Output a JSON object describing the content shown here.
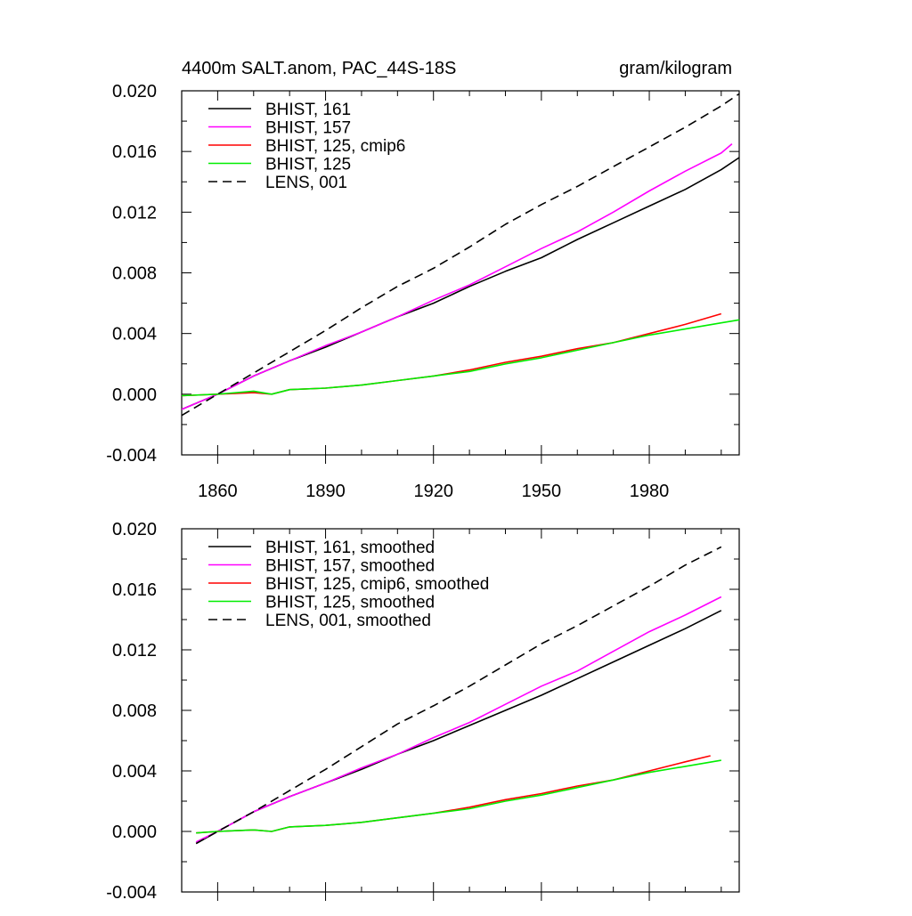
{
  "chart_data": [
    {
      "type": "line",
      "title_left": "4400m SALT.anom, PAC_44S-18S",
      "title_right": "gram/kilogram",
      "xlim": [
        1850,
        2005
      ],
      "ylim": [
        -0.004,
        0.02
      ],
      "x_ticks": [
        1860,
        1890,
        1920,
        1950,
        1980
      ],
      "x_tick_labels": [
        "1860",
        "1890",
        "1920",
        "1950",
        "1980"
      ],
      "y_ticks": [
        -0.004,
        0.0,
        0.004,
        0.008,
        0.012,
        0.016,
        0.02
      ],
      "y_tick_labels": [
        "-0.004",
        "0.000",
        "0.004",
        "0.008",
        "0.012",
        "0.016",
        "0.020"
      ],
      "legend_position": "top-left",
      "series": [
        {
          "name": "BHIST, 161",
          "color": "#000000",
          "dash": "solid",
          "x": [
            1850,
            1860,
            1870,
            1880,
            1890,
            1900,
            1910,
            1920,
            1930,
            1940,
            1950,
            1960,
            1970,
            1980,
            1990,
            2000,
            2005
          ],
          "y": [
            -0.001,
            0.0,
            0.0012,
            0.0022,
            0.0031,
            0.0041,
            0.0051,
            0.006,
            0.0071,
            0.0081,
            0.009,
            0.0102,
            0.0113,
            0.0124,
            0.0135,
            0.0148,
            0.0156
          ]
        },
        {
          "name": "BHIST, 157",
          "color": "#ff00ff",
          "dash": "solid",
          "x": [
            1850,
            1860,
            1870,
            1880,
            1890,
            1900,
            1910,
            1920,
            1930,
            1940,
            1950,
            1960,
            1970,
            1980,
            1990,
            2000,
            2003
          ],
          "y": [
            -0.001,
            0.0,
            0.0012,
            0.0022,
            0.0032,
            0.0041,
            0.0051,
            0.0062,
            0.0072,
            0.0084,
            0.0096,
            0.0107,
            0.012,
            0.0134,
            0.0147,
            0.0159,
            0.0165
          ]
        },
        {
          "name": "BHIST, 125, cmip6",
          "color": "#ff0000",
          "dash": "solid",
          "x": [
            1850,
            1860,
            1870,
            1875,
            1880,
            1890,
            1900,
            1910,
            1920,
            1930,
            1940,
            1950,
            1960,
            1970,
            1980,
            1990,
            2000
          ],
          "y": [
            -0.0001,
            0.0,
            0.0001,
            0.0,
            0.0003,
            0.0004,
            0.0006,
            0.0009,
            0.0012,
            0.0016,
            0.0021,
            0.0025,
            0.003,
            0.0034,
            0.004,
            0.0046,
            0.0053
          ]
        },
        {
          "name": "BHIST, 125",
          "color": "#00ee00",
          "dash": "solid",
          "x": [
            1850,
            1860,
            1870,
            1875,
            1880,
            1890,
            1900,
            1910,
            1920,
            1930,
            1940,
            1950,
            1960,
            1970,
            1980,
            1990,
            2000,
            2005
          ],
          "y": [
            -0.0001,
            0.0,
            0.0002,
            0.0,
            0.0003,
            0.0004,
            0.0006,
            0.0009,
            0.0012,
            0.0015,
            0.002,
            0.0024,
            0.0029,
            0.0034,
            0.0039,
            0.0043,
            0.0047,
            0.0049
          ]
        },
        {
          "name": "LENS, 001",
          "color": "#000000",
          "dash": "dashed",
          "x": [
            1850,
            1860,
            1870,
            1880,
            1890,
            1900,
            1910,
            1920,
            1930,
            1940,
            1950,
            1960,
            1970,
            1980,
            1990,
            2000,
            2005
          ],
          "y": [
            -0.0014,
            0.0,
            0.0014,
            0.0028,
            0.0042,
            0.0057,
            0.0071,
            0.0083,
            0.0097,
            0.0112,
            0.0125,
            0.0137,
            0.015,
            0.0163,
            0.0176,
            0.019,
            0.0198
          ]
        }
      ]
    },
    {
      "type": "line",
      "xlim": [
        1850,
        2005
      ],
      "ylim": [
        -0.004,
        0.02
      ],
      "x_ticks": [
        1860,
        1890,
        1920,
        1950,
        1980
      ],
      "y_ticks": [
        -0.004,
        0.0,
        0.004,
        0.008,
        0.012,
        0.016,
        0.02
      ],
      "y_tick_labels": [
        "-0.004",
        "0.000",
        "0.004",
        "0.008",
        "0.012",
        "0.016",
        "0.020"
      ],
      "legend_position": "top-left",
      "series": [
        {
          "name": "BHIST, 161, smoothed",
          "color": "#000000",
          "dash": "solid",
          "x": [
            1854,
            1860,
            1870,
            1880,
            1890,
            1900,
            1910,
            1920,
            1930,
            1940,
            1950,
            1960,
            1970,
            1980,
            1990,
            2000
          ],
          "y": [
            -0.0008,
            0.0,
            0.0013,
            0.0023,
            0.0032,
            0.0041,
            0.0051,
            0.006,
            0.007,
            0.008,
            0.009,
            0.0101,
            0.0112,
            0.0123,
            0.0134,
            0.0146
          ]
        },
        {
          "name": "BHIST, 157, smoothed",
          "color": "#ff00ff",
          "dash": "solid",
          "x": [
            1854,
            1860,
            1870,
            1880,
            1890,
            1900,
            1910,
            1920,
            1930,
            1940,
            1950,
            1960,
            1970,
            1980,
            1990,
            2000
          ],
          "y": [
            -0.0007,
            0.0,
            0.0013,
            0.0023,
            0.0032,
            0.0042,
            0.0051,
            0.0062,
            0.0072,
            0.0084,
            0.0096,
            0.0106,
            0.0119,
            0.0132,
            0.0143,
            0.0155
          ]
        },
        {
          "name": "BHIST, 125, cmip6, smoothed",
          "color": "#ff0000",
          "dash": "solid",
          "x": [
            1854,
            1860,
            1870,
            1875,
            1880,
            1890,
            1900,
            1910,
            1920,
            1930,
            1940,
            1950,
            1960,
            1970,
            1980,
            1990,
            1997
          ],
          "y": [
            -0.0001,
            0.0,
            0.0001,
            0.0,
            0.0003,
            0.0004,
            0.0006,
            0.0009,
            0.0012,
            0.0016,
            0.0021,
            0.0025,
            0.003,
            0.0034,
            0.004,
            0.0046,
            0.005
          ]
        },
        {
          "name": "BHIST, 125, smoothed",
          "color": "#00ee00",
          "dash": "solid",
          "x": [
            1854,
            1860,
            1870,
            1875,
            1880,
            1890,
            1900,
            1910,
            1920,
            1930,
            1940,
            1950,
            1960,
            1970,
            1980,
            1990,
            2000
          ],
          "y": [
            -0.0001,
            0.0,
            0.0001,
            0.0,
            0.0003,
            0.0004,
            0.0006,
            0.0009,
            0.0012,
            0.0015,
            0.002,
            0.0024,
            0.0029,
            0.0034,
            0.0039,
            0.0043,
            0.0047
          ]
        },
        {
          "name": "LENS, 001, smoothed",
          "color": "#000000",
          "dash": "dashed",
          "x": [
            1854,
            1860,
            1870,
            1880,
            1890,
            1900,
            1910,
            1920,
            1930,
            1940,
            1950,
            1960,
            1970,
            1980,
            1990,
            2000
          ],
          "y": [
            -0.0008,
            0.0,
            0.0013,
            0.0027,
            0.0041,
            0.0056,
            0.0071,
            0.0083,
            0.0096,
            0.011,
            0.0124,
            0.0136,
            0.0149,
            0.0162,
            0.0176,
            0.0188
          ]
        }
      ]
    }
  ]
}
